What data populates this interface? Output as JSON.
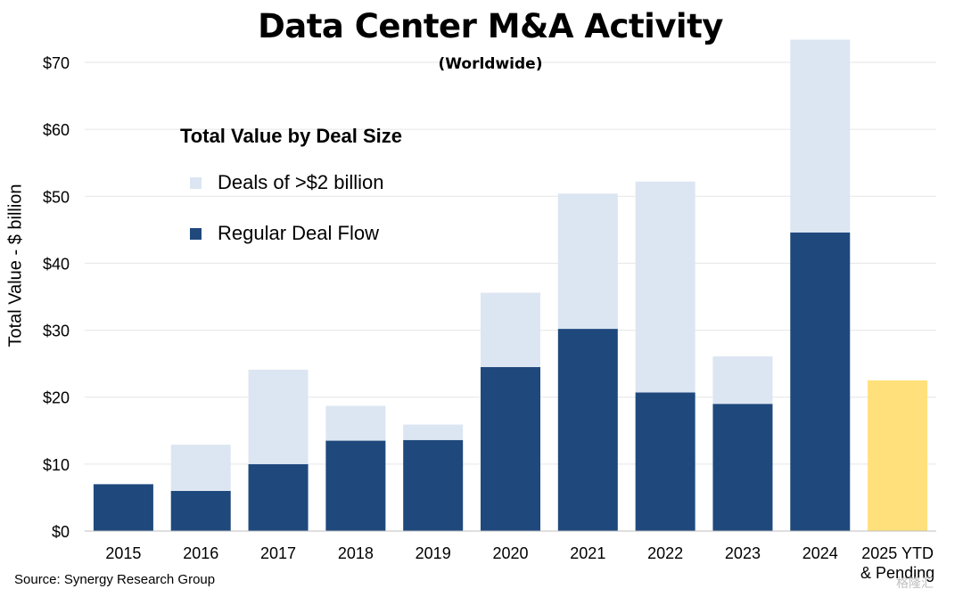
{
  "chart_data": {
    "type": "bar",
    "stacked": true,
    "title": "Data Center M&A Activity",
    "subtitle": "(Worldwide)",
    "ylabel": "Total Value - $ billion",
    "xlabel": "",
    "ylim": [
      0,
      70
    ],
    "y_ticks": [
      0,
      10,
      20,
      30,
      40,
      50,
      60,
      70
    ],
    "y_tick_labels": [
      "$0",
      "$10",
      "$20",
      "$30",
      "$40",
      "$50",
      "$60",
      "$70"
    ],
    "grid": true,
    "categories": [
      [
        "2015"
      ],
      [
        "2016"
      ],
      [
        "2017"
      ],
      [
        "2018"
      ],
      [
        "2019"
      ],
      [
        "2020"
      ],
      [
        "2021"
      ],
      [
        "2022"
      ],
      [
        "2023"
      ],
      [
        "2024"
      ],
      [
        "2025 YTD",
        "& Pending"
      ]
    ],
    "legend_title": "Total Value by Deal Size",
    "series": [
      {
        "name": "Regular Deal Flow",
        "color": "#1f497d",
        "values": [
          7.0,
          6.0,
          10.0,
          13.5,
          13.6,
          24.5,
          30.2,
          20.7,
          19.0,
          44.6,
          null
        ]
      },
      {
        "name": "Deals of >$2 billion",
        "color": "#dce6f2",
        "values": [
          0.0,
          6.9,
          14.1,
          5.2,
          2.3,
          11.1,
          20.2,
          31.5,
          7.1,
          28.8,
          null
        ]
      },
      {
        "name": "2025 YTD & Pending",
        "color": "#ffe07a",
        "values": [
          null,
          null,
          null,
          null,
          null,
          null,
          null,
          null,
          null,
          null,
          22.5
        ],
        "in_legend": false
      }
    ]
  },
  "source": "Source: Synergy Research Group",
  "watermark": "格隆汇"
}
